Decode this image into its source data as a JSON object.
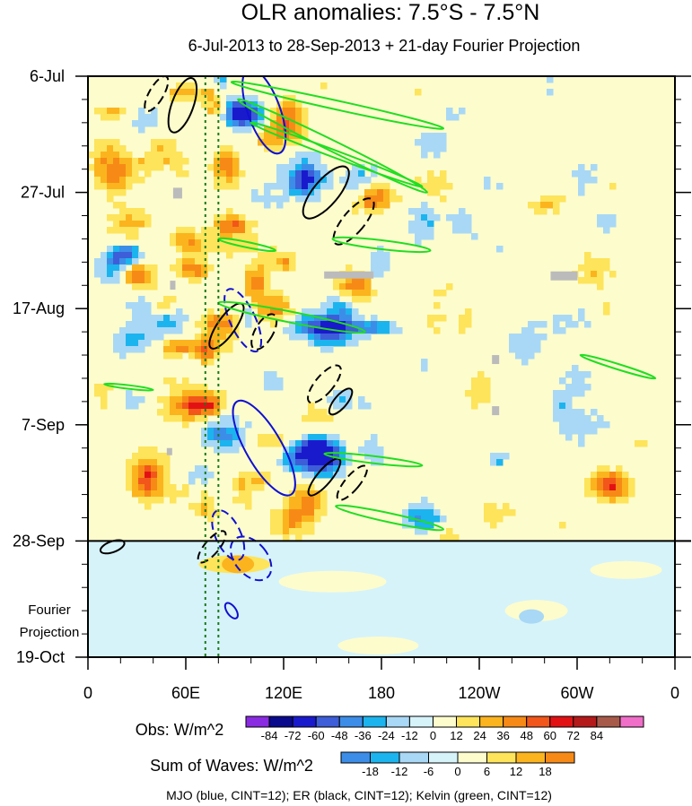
{
  "chart_data": {
    "type": "heatmap",
    "title": "OLR anomalies: 7.5°S - 7.5°N",
    "subtitle": "6-Jul-2013 to 28-Sep-2013 + 21-day Fourier Projection",
    "xlim_deg_east": [
      0,
      360
    ],
    "x_ticks": [
      "0",
      "60E",
      "120E",
      "180",
      "120W",
      "60W",
      "0"
    ],
    "y_ticks": [
      "6-Jul",
      "27-Jul",
      "17-Aug",
      "7-Sep",
      "28-Sep",
      "19-Oct"
    ],
    "y_annotation": [
      "Fourier",
      "Projection"
    ],
    "projection_start": "28-Sep",
    "observed_colorbar": {
      "label": "Obs: W/m^2",
      "levels": [
        -84,
        -72,
        -60,
        -48,
        -36,
        -24,
        -12,
        0,
        12,
        24,
        36,
        48,
        60,
        72,
        84
      ],
      "colors": [
        "#8a2be2",
        "#0a0a8c",
        "#1a1acd",
        "#3d5ed8",
        "#3c8de8",
        "#1cb4ee",
        "#a8d8f5",
        "#d6f3fa",
        "#fdfccd",
        "#fde45a",
        "#fbb41e",
        "#f78a16",
        "#f2561a",
        "#e21214",
        "#b41a1a",
        "#a85a4a",
        "#f06ec8"
      ]
    },
    "waves_colorbar": {
      "label": "Sum of Waves: W/m^2",
      "levels": [
        -18,
        -12,
        -6,
        0,
        6,
        12,
        18
      ],
      "colors": [
        "#3c8de8",
        "#1cb4ee",
        "#a8d8f5",
        "#d6f3fa",
        "#fdfccd",
        "#fde45a",
        "#fbb41e",
        "#f78a16"
      ]
    },
    "legend_note": "MJO (blue, CINT=12); ER (black, CINT=12); Kelvin (green, CINT=12)",
    "series": [
      {
        "name": "MJO",
        "color": "#1010d0"
      },
      {
        "name": "ER",
        "color": "#000000"
      },
      {
        "name": "Kelvin",
        "color": "#22dd22"
      }
    ],
    "reference_longitudes_deg_east": [
      72,
      80
    ],
    "grid": false
  }
}
